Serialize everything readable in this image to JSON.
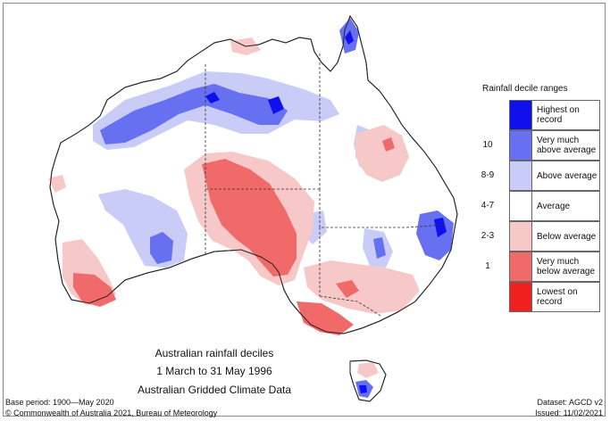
{
  "legend": {
    "title": "Rainfall decile ranges",
    "items": [
      {
        "range": "",
        "label": "Highest on record",
        "color": "#1010ee"
      },
      {
        "range": "10",
        "label": "Very much above average",
        "color": "#6670f0"
      },
      {
        "range": "8-9",
        "label": "Above average",
        "color": "#c8ccf7"
      },
      {
        "range": "4-7",
        "label": "Average",
        "color": "#ffffff"
      },
      {
        "range": "2-3",
        "label": "Below average",
        "color": "#f7c8c8"
      },
      {
        "range": "1",
        "label": "Very much below average",
        "color": "#f06a6a"
      },
      {
        "range": "",
        "label": "Lowest on record",
        "color": "#f02020"
      }
    ]
  },
  "caption": {
    "line1": "Australian rainfall deciles",
    "line2": "1 March to 31 May 1996",
    "line3": "Australian Gridded Climate Data"
  },
  "footer": {
    "base_period": "Base period: 1900—May 2020",
    "dataset": "Dataset: AGCD v2",
    "copyright": "© Commonwealth of Australia 2021, Bureau of Meteorology",
    "issued": "Issued: 11/02/2021"
  }
}
